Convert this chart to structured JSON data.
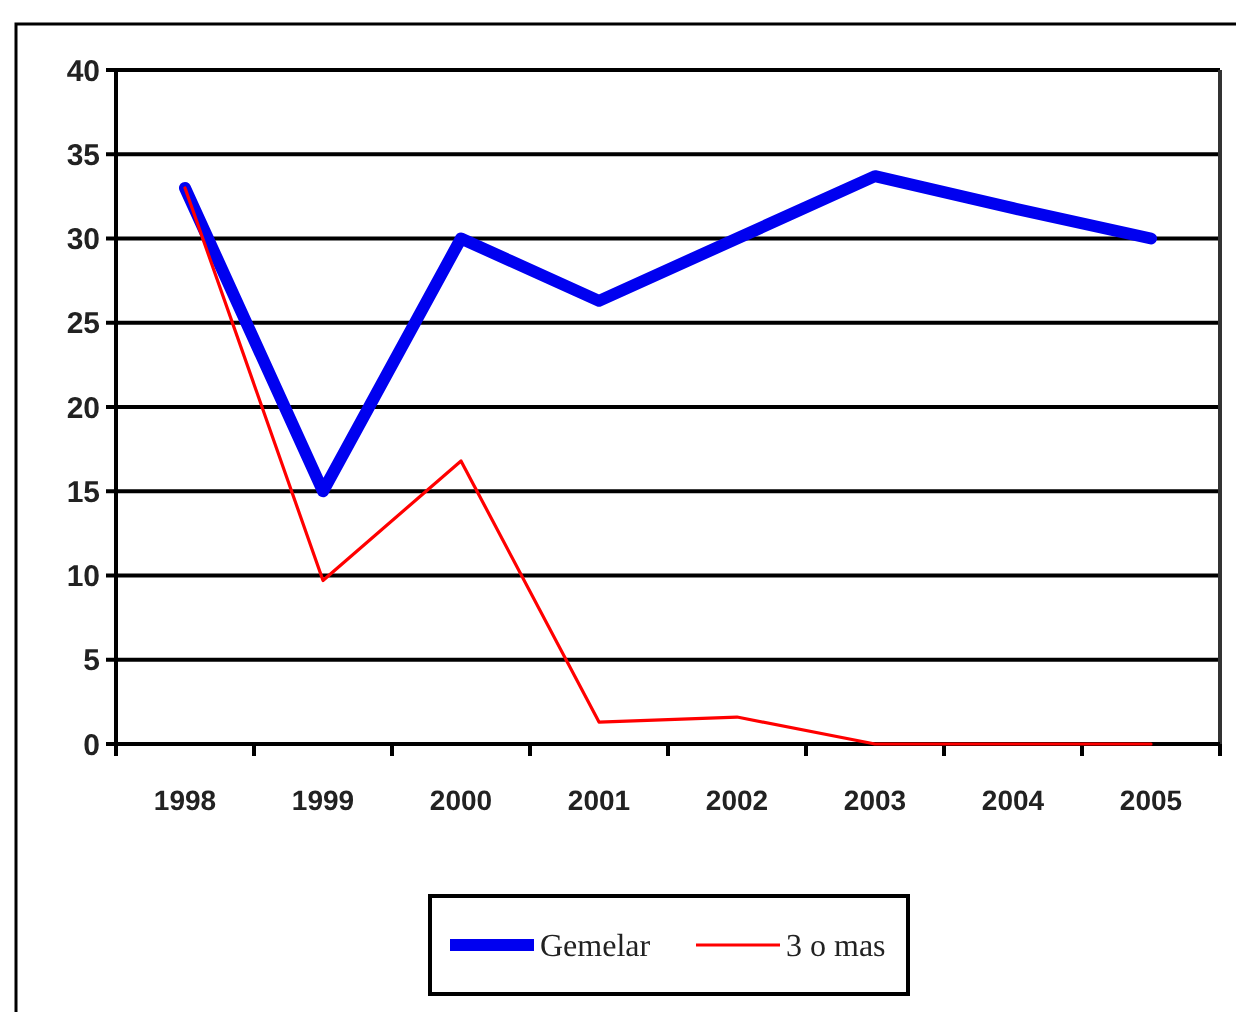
{
  "chart_data": {
    "type": "line",
    "categories": [
      "1998",
      "1999",
      "2000",
      "2001",
      "2002",
      "2003",
      "2004",
      "2005"
    ],
    "series": [
      {
        "name": "Gemelar",
        "color": "#0000f0",
        "values": [
          33,
          15,
          30,
          26.3,
          30,
          33.7,
          31.8,
          30
        ]
      },
      {
        "name": "3 o mas",
        "color": "#ff0000",
        "values": [
          33,
          9.7,
          16.8,
          1.3,
          1.6,
          0,
          0,
          0
        ]
      }
    ],
    "ylim": [
      0,
      40
    ],
    "yticks": [
      0,
      5,
      10,
      15,
      20,
      25,
      30,
      35,
      40
    ],
    "grid": "y",
    "legend": "bottom",
    "line_style": "solid"
  }
}
